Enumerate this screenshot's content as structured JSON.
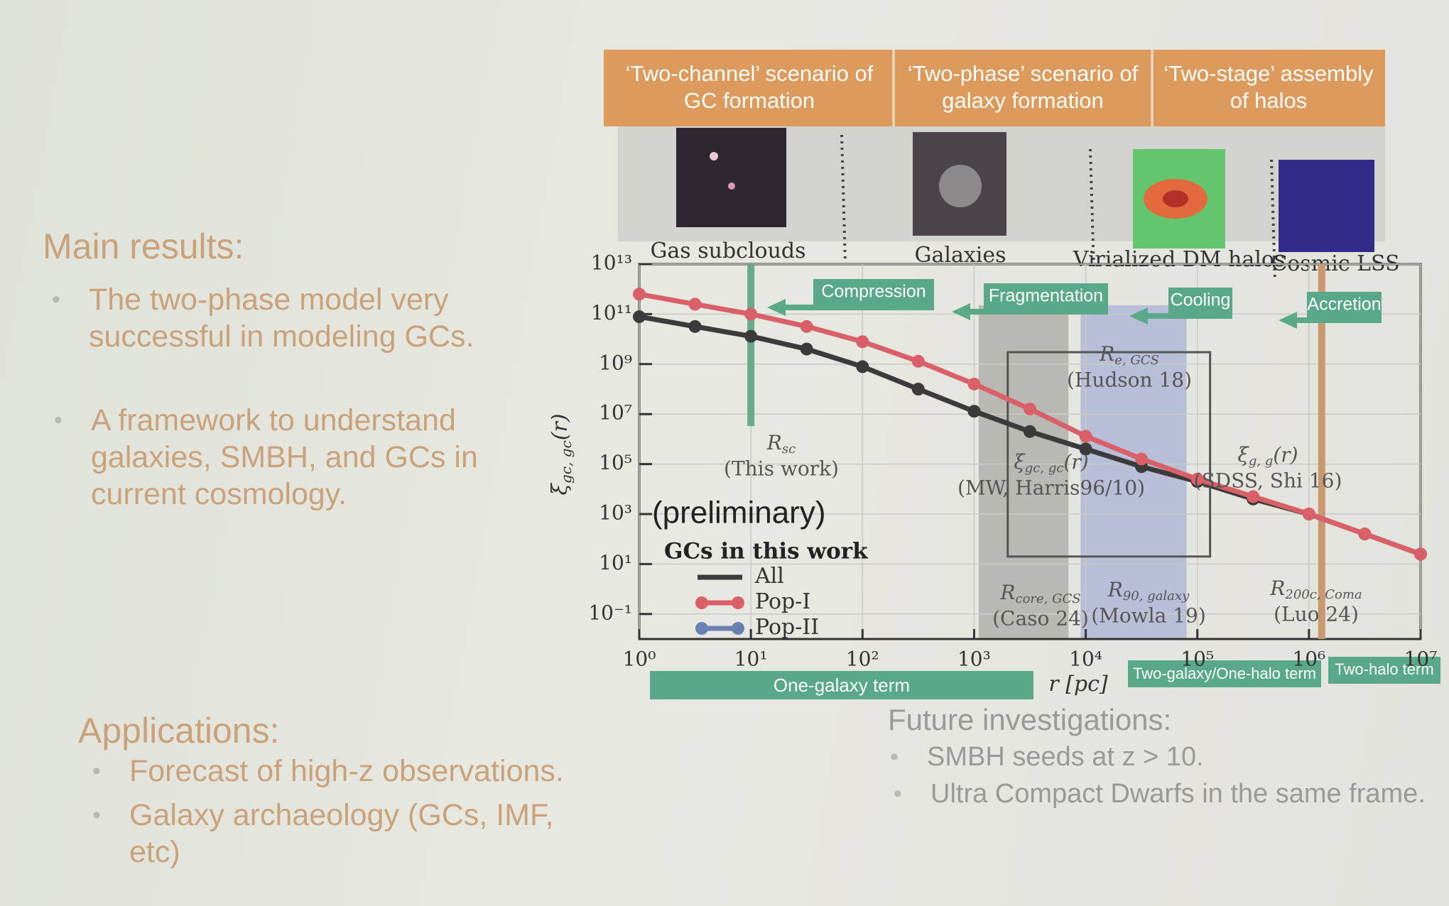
{
  "left": {
    "main_title": "Main results:",
    "main_bullets": [
      "The two-phase model very successful in modeling GCs.",
      "A framework to understand galaxies, SMBH, and GCs in current cosmology."
    ],
    "applications_title": "Applications:",
    "applications_bullets": [
      "Forecast of high-z observations.",
      "Galaxy archaeology (GCs, IMF, etc)"
    ],
    "future_title": "Future investigations:",
    "future_bullets": [
      "SMBH seeds at z > 10.",
      "Ultra Compact Dwarfs in the same frame."
    ]
  },
  "header": {
    "scenarios": [
      "‘Two-channel’ scenario of GC formation",
      "‘Two-phase’ scenario of galaxy formation",
      "‘Two-stage’ assembly of halos"
    ],
    "scales": [
      "Gas subclouds",
      "Galaxies",
      "Virialized DM halos",
      "Cosmic LSS"
    ],
    "processes": [
      "Compression",
      "Fragmentation",
      "Cooling",
      "Accretion"
    ],
    "terms": [
      "One-galaxy term",
      "Two-galaxy/One-halo term",
      "Two-halo term"
    ]
  },
  "chart_data": {
    "type": "line",
    "x_label": "r [pc]",
    "y_label": {
      "main": "ξ",
      "sub": "gc, gc",
      "tail": "(r)"
    },
    "note": "(preliminary)",
    "legend_title": "GCs in this work",
    "x_log": true,
    "y_log": true,
    "xlim": [
      1,
      10000000
    ],
    "ylim": [
      0.01,
      10000000000000.0
    ],
    "xticks": [
      {
        "value": 1,
        "label": "10⁰"
      },
      {
        "value": 10,
        "label": "10¹"
      },
      {
        "value": 100,
        "label": "10²"
      },
      {
        "value": 1000,
        "label": "10³"
      },
      {
        "value": 10000,
        "label": "10⁴"
      },
      {
        "value": 100000,
        "label": "10⁵"
      },
      {
        "value": 1000000,
        "label": "10⁶"
      },
      {
        "value": 10000000,
        "label": "10⁷"
      }
    ],
    "yticks": [
      {
        "value": 0.1,
        "label": "10⁻¹"
      },
      {
        "value": 10,
        "label": "10¹"
      },
      {
        "value": 1000,
        "label": "10³"
      },
      {
        "value": 100000,
        "label": "10⁵"
      },
      {
        "value": 10000000,
        "label": "10⁷"
      },
      {
        "value": 1000000000,
        "label": "10⁹"
      },
      {
        "value": 100000000000,
        "label": "10¹¹"
      },
      {
        "value": 10000000000000.0,
        "label": "10¹³"
      }
    ],
    "grid": true,
    "x": [
      1,
      3.16,
      10,
      31.6,
      100,
      316,
      1000,
      3160,
      10000,
      31600,
      100000,
      316000,
      1000000,
      3160000,
      10000000
    ],
    "series": [
      {
        "name": "All",
        "color": "#3b3b3b",
        "values": [
          79000000000.0,
          32000000000.0,
          13000000000.0,
          4000000000.0,
          790000000.0,
          100000000.0,
          13000000.0,
          2000000.0,
          400000.0,
          79000.0,
          20000.0,
          4000,
          1000,
          160,
          25
        ]
      },
      {
        "name": "Pop-I",
        "color": "#d95f68",
        "values": [
          630000000000.0,
          250000000000.0,
          100000000000.0,
          32000000000.0,
          7900000000.0,
          1300000000.0,
          160000000.0,
          16000000.0,
          1300000.0,
          160000.0,
          25000.0,
          5000,
          1000,
          160,
          25
        ]
      },
      {
        "name": "Pop-II",
        "color": "#6b80b2",
        "values": [
          null,
          null,
          null,
          null,
          null,
          null,
          null,
          null,
          null,
          null,
          null,
          null,
          null,
          null,
          null
        ]
      }
    ],
    "annotations": [
      {
        "symbol": "R",
        "sub": "sc",
        "source": "(This work)",
        "x": 10,
        "color": "#6aa98a"
      },
      {
        "symbol": "R",
        "sub": "e, GCS",
        "source": "(Hudson 18)",
        "xrange": [
          2000,
          130000
        ],
        "yrange": [
          20,
          3000000000
        ]
      },
      {
        "symbol": "ξ",
        "sub": "gc, gc",
        "tail": "(r)",
        "source": "(MW, Harris96/10)"
      },
      {
        "symbol": "ξ",
        "sub": "g, g",
        "tail": "(r)",
        "source": "(SDSS, Shi 16)"
      },
      {
        "symbol": "R",
        "sub": "core, GCS",
        "source": "(Caso 24)",
        "xrange": [
          1100,
          7000
        ],
        "color": "#a9aaa4"
      },
      {
        "symbol": "R",
        "sub": "90, galaxy",
        "source": "(Mowla 19)",
        "xrange": [
          9000,
          80000
        ],
        "color": "#aab0d6"
      },
      {
        "symbol": "R",
        "sub": "200c, Coma",
        "source": "(Luo 24)",
        "x": 1300000,
        "color": "#c8986e"
      }
    ]
  }
}
